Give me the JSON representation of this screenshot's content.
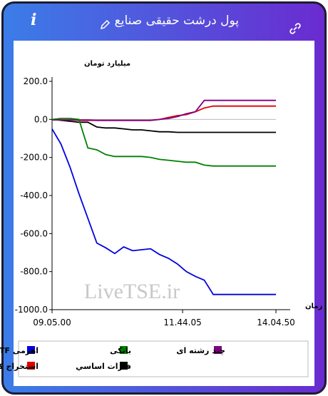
{
  "header": {
    "title": "پول درشت حقیقی صنایع",
    "info": "i"
  },
  "chart_data": {
    "type": "line",
    "y_axis_label": "میلیارد تومان",
    "x_axis_label": "زمان",
    "watermark": "LiveTSE.ir",
    "x": [
      0,
      4,
      8,
      12,
      16,
      20,
      24,
      28,
      32,
      36,
      40,
      44,
      48,
      52,
      56,
      60,
      64,
      68,
      72,
      76,
      80,
      84,
      88,
      92,
      96,
      100
    ],
    "xlim": [
      0,
      100
    ],
    "xticks": [
      {
        "value": 0,
        "label": "09.05.00"
      },
      {
        "value": 58.3,
        "label": "11.44.05"
      },
      {
        "value": 100,
        "label": "14.04.50"
      }
    ],
    "ylim": [
      -1000,
      200
    ],
    "yticks": [
      {
        "value": 200,
        "label": "200.0"
      },
      {
        "value": 0,
        "label": "0.0"
      },
      {
        "value": -200,
        "label": "-200.0"
      },
      {
        "value": -400,
        "label": "-400.0"
      },
      {
        "value": -600,
        "label": "-600.0"
      },
      {
        "value": -800,
        "label": "-800.0"
      },
      {
        "value": -1000,
        "label": "-1000.0"
      }
    ],
    "reference_line": 0,
    "grid": false,
    "series": [
      {
        "name": "اهرمی ETF",
        "color": "#0000e0",
        "values": [
          -50,
          -130,
          -250,
          -390,
          -520,
          -650,
          -675,
          -705,
          -670,
          -690,
          -685,
          -680,
          -710,
          -730,
          -760,
          -800,
          -825,
          -845,
          -920,
          -920,
          -920,
          -920,
          -920,
          -920,
          -920,
          -920
        ]
      },
      {
        "name": "بانکی",
        "color": "#008000",
        "values": [
          0,
          5,
          5,
          0,
          -150,
          -160,
          -185,
          -195,
          -195,
          -195,
          -195,
          -200,
          -210,
          -215,
          -220,
          -225,
          -225,
          -240,
          -245,
          -245,
          -245,
          -245,
          -245,
          -245,
          -245,
          -245
        ]
      },
      {
        "name": "چند رشته ای",
        "color": "#800080",
        "values": [
          -3,
          -3,
          -3,
          -3,
          -3,
          -5,
          -5,
          -5,
          -5,
          -5,
          -5,
          -5,
          0,
          5,
          15,
          30,
          40,
          100,
          100,
          100,
          100,
          100,
          100,
          100,
          100,
          100
        ]
      },
      {
        "name": "استخراج کانه هاي فلزي",
        "color": "#e00000",
        "values": [
          0,
          -3,
          -3,
          -5,
          -5,
          -5,
          -5,
          -5,
          -5,
          -5,
          -5,
          -5,
          0,
          10,
          20,
          25,
          40,
          60,
          70,
          70,
          70,
          70,
          70,
          70,
          70,
          70
        ]
      },
      {
        "name": "فلزات اساسي",
        "color": "#000000",
        "values": [
          0,
          -5,
          -10,
          -15,
          -15,
          -40,
          -45,
          -45,
          -50,
          -55,
          -55,
          -60,
          -65,
          -65,
          -68,
          -68,
          -68,
          -68,
          -68,
          -68,
          -68,
          -68,
          -68,
          -68,
          -68,
          -68
        ]
      }
    ]
  }
}
